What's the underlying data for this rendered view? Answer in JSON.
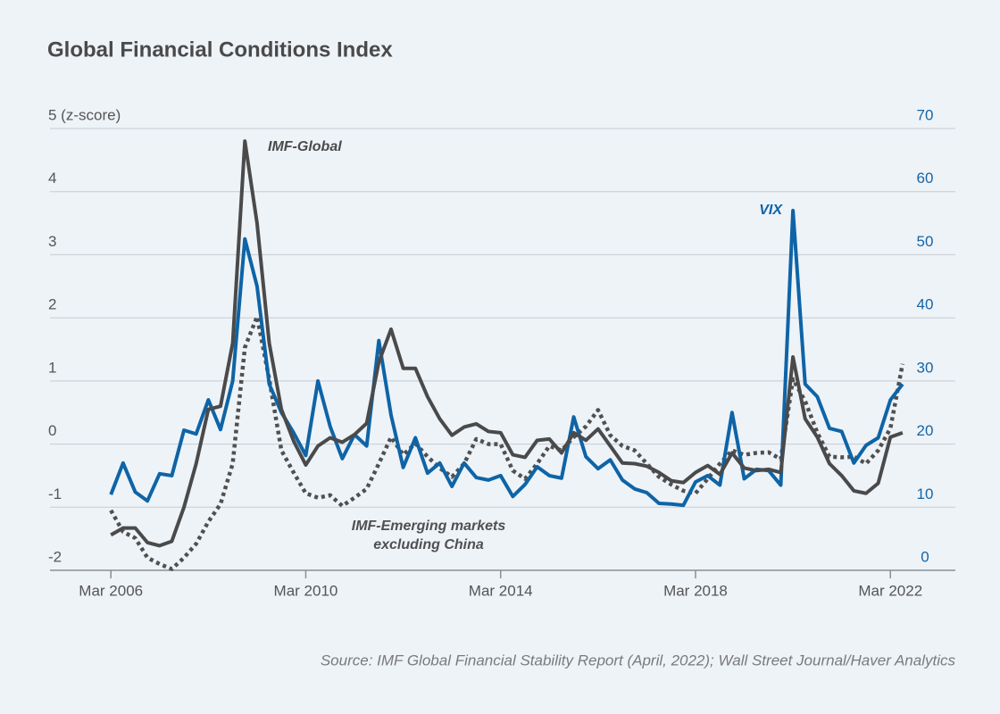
{
  "chart_data": {
    "type": "line",
    "title": "Global Financial Conditions Index",
    "source": "Source: IMF Global Financial Stability Report (April, 2022); Wall Street Journal/Haver Analytics",
    "x": [
      "2006-03",
      "2006-06",
      "2006-09",
      "2006-12",
      "2007-03",
      "2007-06",
      "2007-09",
      "2007-12",
      "2008-03",
      "2008-06",
      "2008-09",
      "2008-12",
      "2009-03",
      "2009-06",
      "2009-09",
      "2009-12",
      "2010-03",
      "2010-06",
      "2010-09",
      "2010-12",
      "2011-03",
      "2011-06",
      "2011-09",
      "2011-12",
      "2012-03",
      "2012-06",
      "2012-09",
      "2012-12",
      "2013-03",
      "2013-06",
      "2013-09",
      "2013-12",
      "2014-03",
      "2014-06",
      "2014-09",
      "2014-12",
      "2015-03",
      "2015-06",
      "2015-09",
      "2015-12",
      "2016-03",
      "2016-06",
      "2016-09",
      "2016-12",
      "2017-03",
      "2017-06",
      "2017-09",
      "2017-12",
      "2018-03",
      "2018-06",
      "2018-09",
      "2018-12",
      "2019-03",
      "2019-06",
      "2019-09",
      "2019-12",
      "2020-03",
      "2020-06",
      "2020-09",
      "2020-12",
      "2021-03",
      "2021-06",
      "2021-09",
      "2021-12",
      "2022-03",
      "2022-06"
    ],
    "xlim": [
      "2004-12",
      "2023-07"
    ],
    "xticks": [
      {
        "value": "2006-03",
        "label": "Mar 2006"
      },
      {
        "value": "2010-03",
        "label": "Mar 2010"
      },
      {
        "value": "2014-03",
        "label": "Mar 2014"
      },
      {
        "value": "2018-03",
        "label": "Mar 2018"
      },
      {
        "value": "2022-03",
        "label": "Mar 2022"
      }
    ],
    "ylim": [
      -2,
      5
    ],
    "yticks": [
      -2,
      -1,
      0,
      1,
      2,
      3,
      4,
      {
        "value": 5,
        "label": "5 (z-score)"
      }
    ],
    "y2lim": [
      0,
      70
    ],
    "y2ticks": [
      0,
      10,
      20,
      30,
      40,
      50,
      60,
      70
    ],
    "y2color": "#1565a6",
    "grid": true,
    "series": [
      {
        "name": "IMF-Emerging markets excluding China",
        "color": "#505050",
        "style": "dotted",
        "values": [
          -1.05,
          -1.39,
          -1.49,
          -1.8,
          -1.9,
          -1.98,
          -1.8,
          -1.58,
          -1.23,
          -0.95,
          -0.31,
          1.53,
          2.02,
          1.03,
          -0.1,
          -0.45,
          -0.78,
          -0.85,
          -0.81,
          -0.98,
          -0.85,
          -0.71,
          -0.31,
          0.11,
          -0.17,
          0.01,
          -0.2,
          -0.38,
          -0.52,
          -0.31,
          0.08,
          0,
          0,
          -0.42,
          -0.55,
          -0.31,
          -0.03,
          -0.1,
          0.11,
          0.28,
          0.54,
          0.14,
          -0.03,
          -0.1,
          -0.31,
          -0.52,
          -0.64,
          -0.74,
          -0.78,
          -0.55,
          -0.31,
          -0.1,
          -0.17,
          -0.14,
          -0.13,
          -0.24,
          1.03,
          0.68,
          0.18,
          -0.2,
          -0.21,
          -0.2,
          -0.31,
          -0.1,
          0.25,
          1.27
        ]
      },
      {
        "name": "VIX",
        "color": "#0e64a6",
        "style": "solid",
        "axis": "y2",
        "values": [
          12,
          17,
          12.4,
          11,
          15.3,
          15,
          22.2,
          21.6,
          27,
          22.3,
          30,
          52.5,
          45,
          29.5,
          25,
          21.8,
          18.2,
          30,
          22.8,
          17.7,
          21.5,
          19.7,
          36.4,
          24.6,
          16.3,
          21,
          15.4,
          17,
          13.3,
          17,
          14.7,
          14.3,
          15,
          11.7,
          13.6,
          16.4,
          15,
          14.6,
          24.3,
          18,
          16.1,
          17.5,
          14.3,
          12.9,
          12.3,
          10.6,
          10.5,
          10.3,
          14,
          15,
          13.5,
          25,
          14.5,
          16,
          15.8,
          13.5,
          57,
          29.5,
          27.5,
          22.5,
          22,
          17,
          19.8,
          21,
          27,
          29.5
        ]
      },
      {
        "name": "IMF-Global",
        "color": "#4a4a4a",
        "style": "solid",
        "values": [
          -1.44,
          -1.33,
          -1.33,
          -1.56,
          -1.61,
          -1.54,
          -1.0,
          -0.31,
          0.55,
          0.6,
          1.6,
          4.8,
          3.5,
          1.6,
          0.55,
          0.05,
          -0.33,
          -0.03,
          0.1,
          0.03,
          0.15,
          0.33,
          1.3,
          1.82,
          1.2,
          1.2,
          0.75,
          0.4,
          0.14,
          0.27,
          0.32,
          0.2,
          0.18,
          -0.17,
          -0.21,
          0.06,
          0.08,
          -0.14,
          0.18,
          0.06,
          0.24,
          -0.03,
          -0.3,
          -0.31,
          -0.35,
          -0.45,
          -0.58,
          -0.61,
          -0.45,
          -0.34,
          -0.48,
          -0.14,
          -0.38,
          -0.42,
          -0.4,
          -0.45,
          1.38,
          0.4,
          0.11,
          -0.31,
          -0.5,
          -0.74,
          -0.78,
          -0.62,
          0.11,
          0.18
        ]
      }
    ]
  }
}
